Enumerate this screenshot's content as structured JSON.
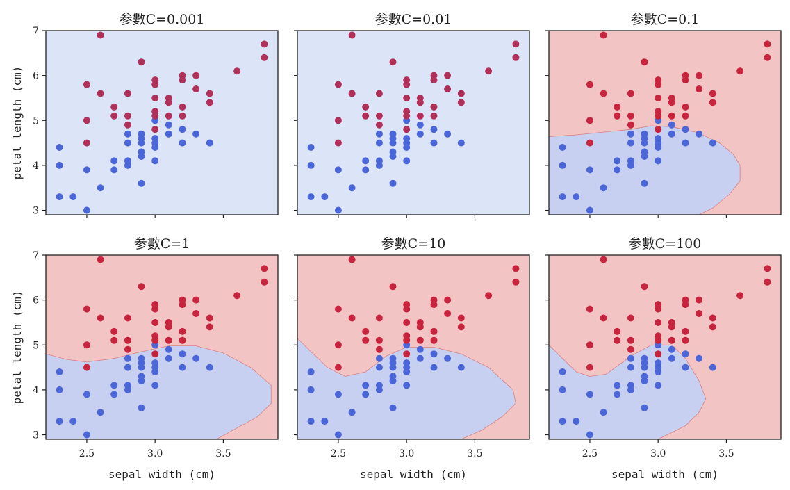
{
  "chart_data": {
    "type": "scatter",
    "xlabel": "sepal width (cm)",
    "ylabel": "petal length (cm)",
    "xlim": [
      2.2,
      3.9
    ],
    "ylim": [
      2.9,
      7.0
    ],
    "xticks": [
      2.5,
      3.0,
      3.5
    ],
    "xtick_labels": [
      "2.5",
      "3.0",
      "3.5"
    ],
    "yticks": [
      3,
      4,
      5,
      6,
      7
    ],
    "ytick_labels": [
      "3",
      "4",
      "5",
      "6",
      "7"
    ],
    "colors": {
      "class0_point": "#4a66d8",
      "class1_point": "#c8243e",
      "region_blue": "#c7d0f1",
      "region_red": "#f2c4c4",
      "flat_background": "#dce4f8",
      "flat_class1_point": "#b0305a"
    },
    "points": [
      {
        "x": 2.3,
        "y": 4.4,
        "c": 0
      },
      {
        "x": 2.3,
        "y": 4.0,
        "c": 0
      },
      {
        "x": 2.3,
        "y": 3.3,
        "c": 0
      },
      {
        "x": 2.4,
        "y": 3.3,
        "c": 0
      },
      {
        "x": 2.5,
        "y": 3.9,
        "c": 0
      },
      {
        "x": 2.5,
        "y": 3.0,
        "c": 0
      },
      {
        "x": 2.6,
        "y": 3.5,
        "c": 0
      },
      {
        "x": 2.7,
        "y": 4.1,
        "c": 0
      },
      {
        "x": 2.7,
        "y": 3.9,
        "c": 0
      },
      {
        "x": 2.8,
        "y": 4.7,
        "c": 0
      },
      {
        "x": 2.8,
        "y": 4.5,
        "c": 0
      },
      {
        "x": 2.8,
        "y": 4.1,
        "c": 0
      },
      {
        "x": 2.8,
        "y": 4.0,
        "c": 0
      },
      {
        "x": 2.9,
        "y": 4.7,
        "c": 0
      },
      {
        "x": 2.9,
        "y": 4.6,
        "c": 0
      },
      {
        "x": 2.9,
        "y": 4.5,
        "c": 0
      },
      {
        "x": 2.9,
        "y": 4.3,
        "c": 0
      },
      {
        "x": 2.9,
        "y": 4.2,
        "c": 0
      },
      {
        "x": 2.9,
        "y": 3.6,
        "c": 0
      },
      {
        "x": 3.0,
        "y": 5.0,
        "c": 0
      },
      {
        "x": 3.0,
        "y": 4.6,
        "c": 0
      },
      {
        "x": 3.0,
        "y": 4.5,
        "c": 0
      },
      {
        "x": 3.0,
        "y": 4.4,
        "c": 0
      },
      {
        "x": 3.0,
        "y": 4.1,
        "c": 0
      },
      {
        "x": 3.1,
        "y": 4.9,
        "c": 0
      },
      {
        "x": 3.1,
        "y": 4.7,
        "c": 0
      },
      {
        "x": 3.2,
        "y": 4.8,
        "c": 0
      },
      {
        "x": 3.2,
        "y": 4.5,
        "c": 0
      },
      {
        "x": 3.3,
        "y": 4.7,
        "c": 0
      },
      {
        "x": 3.4,
        "y": 4.5,
        "c": 0
      },
      {
        "x": 2.5,
        "y": 5.8,
        "c": 1
      },
      {
        "x": 2.5,
        "y": 5.0,
        "c": 1
      },
      {
        "x": 2.5,
        "y": 4.5,
        "c": 1
      },
      {
        "x": 2.6,
        "y": 6.9,
        "c": 1
      },
      {
        "x": 2.6,
        "y": 5.6,
        "c": 1
      },
      {
        "x": 2.7,
        "y": 5.3,
        "c": 1
      },
      {
        "x": 2.7,
        "y": 5.1,
        "c": 1
      },
      {
        "x": 2.8,
        "y": 5.6,
        "c": 1
      },
      {
        "x": 2.8,
        "y": 5.1,
        "c": 1
      },
      {
        "x": 2.8,
        "y": 4.9,
        "c": 1
      },
      {
        "x": 2.9,
        "y": 6.3,
        "c": 1
      },
      {
        "x": 3.0,
        "y": 5.9,
        "c": 1
      },
      {
        "x": 3.0,
        "y": 5.8,
        "c": 1
      },
      {
        "x": 3.0,
        "y": 5.5,
        "c": 1
      },
      {
        "x": 3.0,
        "y": 5.2,
        "c": 1
      },
      {
        "x": 3.0,
        "y": 5.1,
        "c": 1
      },
      {
        "x": 3.0,
        "y": 4.8,
        "c": 1
      },
      {
        "x": 3.1,
        "y": 5.5,
        "c": 1
      },
      {
        "x": 3.1,
        "y": 5.4,
        "c": 1
      },
      {
        "x": 3.1,
        "y": 5.1,
        "c": 1
      },
      {
        "x": 3.2,
        "y": 6.0,
        "c": 1
      },
      {
        "x": 3.2,
        "y": 5.9,
        "c": 1
      },
      {
        "x": 3.2,
        "y": 5.3,
        "c": 1
      },
      {
        "x": 3.2,
        "y": 5.1,
        "c": 1
      },
      {
        "x": 3.3,
        "y": 6.0,
        "c": 1
      },
      {
        "x": 3.3,
        "y": 5.7,
        "c": 1
      },
      {
        "x": 3.4,
        "y": 5.6,
        "c": 1
      },
      {
        "x": 3.4,
        "y": 5.4,
        "c": 1
      },
      {
        "x": 3.6,
        "y": 6.1,
        "c": 1
      },
      {
        "x": 3.8,
        "y": 6.7,
        "c": 1
      },
      {
        "x": 3.8,
        "y": 6.4,
        "c": 1
      }
    ],
    "panels": [
      {
        "title": "参數C=0.001",
        "regions": "flat",
        "boundary": []
      },
      {
        "title": "参數C=0.01",
        "regions": "flat",
        "boundary": []
      },
      {
        "title": "参數C=0.1",
        "regions": "split",
        "boundary": [
          [
            2.2,
            4.64
          ],
          [
            2.4,
            4.68
          ],
          [
            2.6,
            4.74
          ],
          [
            2.8,
            4.8
          ],
          [
            2.95,
            4.88
          ],
          [
            3.1,
            4.86
          ],
          [
            3.3,
            4.72
          ],
          [
            3.45,
            4.5
          ],
          [
            3.55,
            4.25
          ],
          [
            3.6,
            4.0
          ],
          [
            3.6,
            3.65
          ],
          [
            3.52,
            3.35
          ],
          [
            3.4,
            3.05
          ],
          [
            3.3,
            2.9
          ]
        ]
      },
      {
        "title": "参數C=1",
        "regions": "split",
        "boundary": [
          [
            2.2,
            4.8
          ],
          [
            2.35,
            4.68
          ],
          [
            2.5,
            4.62
          ],
          [
            2.7,
            4.7
          ],
          [
            2.9,
            4.85
          ],
          [
            3.1,
            4.98
          ],
          [
            3.3,
            4.98
          ],
          [
            3.5,
            4.82
          ],
          [
            3.7,
            4.5
          ],
          [
            3.85,
            4.1
          ],
          [
            3.85,
            3.7
          ],
          [
            3.75,
            3.4
          ],
          [
            3.6,
            3.15
          ],
          [
            3.45,
            2.9
          ]
        ]
      },
      {
        "title": "参數C=10",
        "regions": "split",
        "boundary": [
          [
            2.2,
            5.15
          ],
          [
            2.3,
            4.85
          ],
          [
            2.42,
            4.5
          ],
          [
            2.55,
            4.3
          ],
          [
            2.7,
            4.4
          ],
          [
            2.85,
            4.75
          ],
          [
            3.0,
            4.95
          ],
          [
            3.2,
            4.95
          ],
          [
            3.4,
            4.8
          ],
          [
            3.6,
            4.5
          ],
          [
            3.78,
            4.0
          ],
          [
            3.8,
            3.7
          ],
          [
            3.7,
            3.4
          ],
          [
            3.55,
            3.1
          ],
          [
            3.4,
            2.9
          ]
        ]
      },
      {
        "title": "参數C=100",
        "regions": "split",
        "boundary": [
          [
            2.2,
            5.0
          ],
          [
            2.3,
            4.7
          ],
          [
            2.4,
            4.4
          ],
          [
            2.5,
            4.3
          ],
          [
            2.62,
            4.35
          ],
          [
            2.8,
            4.75
          ],
          [
            2.95,
            5.0
          ],
          [
            3.1,
            5.0
          ],
          [
            3.2,
            4.7
          ],
          [
            3.3,
            4.2
          ],
          [
            3.35,
            3.8
          ],
          [
            3.3,
            3.5
          ],
          [
            3.2,
            3.2
          ],
          [
            3.0,
            2.9
          ]
        ]
      }
    ]
  }
}
